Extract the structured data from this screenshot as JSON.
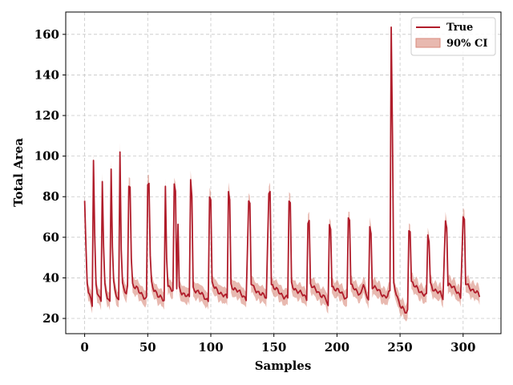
{
  "chart_data": {
    "type": "line",
    "title": "",
    "xlabel": "Samples",
    "ylabel": "Total Area",
    "xlim": [
      -15,
      330
    ],
    "ylim": [
      12.5,
      171
    ],
    "xticks": [
      0,
      50,
      100,
      150,
      200,
      250,
      300
    ],
    "yticks": [
      20,
      40,
      60,
      80,
      100,
      120,
      140,
      160
    ],
    "grid": true,
    "legend_position": "top-right",
    "colors": {
      "line": "#b01c2a",
      "band": "#d98a7c",
      "grid": "#c8c8c8"
    },
    "x_range": [
      0,
      313
    ],
    "series": [
      {
        "name": "True",
        "style": "line",
        "points": [
          [
            0,
            78
          ],
          [
            1,
            55
          ],
          [
            2,
            37
          ],
          [
            3,
            33
          ],
          [
            4,
            31
          ],
          [
            5,
            29
          ],
          [
            6,
            27
          ],
          [
            7,
            99
          ],
          [
            8,
            60
          ],
          [
            9,
            37
          ],
          [
            10,
            33
          ],
          [
            11,
            31
          ],
          [
            12,
            29
          ],
          [
            13,
            28
          ],
          [
            14,
            88
          ],
          [
            15,
            55
          ],
          [
            16,
            37
          ],
          [
            17,
            34
          ],
          [
            18,
            31
          ],
          [
            19,
            29
          ],
          [
            20,
            28
          ],
          [
            21,
            94
          ],
          [
            22,
            55
          ],
          [
            23,
            37
          ],
          [
            24,
            34
          ],
          [
            25,
            32
          ],
          [
            26,
            30
          ],
          [
            27,
            29
          ],
          [
            28,
            103
          ],
          [
            29,
            55
          ],
          [
            30,
            37
          ],
          [
            31,
            34
          ],
          [
            32,
            33
          ],
          [
            33,
            32
          ],
          [
            34,
            35
          ],
          [
            35,
            85
          ],
          [
            36,
            86
          ],
          [
            37,
            50
          ],
          [
            38,
            37
          ],
          [
            39,
            36
          ],
          [
            41,
            35
          ],
          [
            43,
            33
          ],
          [
            45,
            32
          ],
          [
            47,
            31
          ],
          [
            49,
            30
          ],
          [
            50,
            86
          ],
          [
            51,
            87
          ],
          [
            52,
            50
          ],
          [
            53,
            37
          ],
          [
            55,
            34
          ],
          [
            57,
            33
          ],
          [
            59,
            31
          ],
          [
            61,
            30
          ],
          [
            63,
            28
          ],
          [
            64,
            84
          ],
          [
            65,
            50
          ],
          [
            66,
            37
          ],
          [
            68,
            35
          ],
          [
            70,
            34
          ],
          [
            71,
            85
          ],
          [
            72,
            82
          ],
          [
            73,
            35
          ],
          [
            74,
            66
          ],
          [
            75,
            35
          ],
          [
            77,
            33
          ],
          [
            79,
            32
          ],
          [
            81,
            31
          ],
          [
            83,
            30
          ],
          [
            84,
            89
          ],
          [
            85,
            80
          ],
          [
            86,
            35
          ],
          [
            88,
            34
          ],
          [
            90,
            33
          ],
          [
            92,
            32
          ],
          [
            94,
            31
          ],
          [
            96,
            30
          ],
          [
            98,
            29
          ],
          [
            99,
            81
          ],
          [
            100,
            78
          ],
          [
            101,
            37
          ],
          [
            103,
            35
          ],
          [
            105,
            34
          ],
          [
            107,
            33
          ],
          [
            109,
            32
          ],
          [
            111,
            31
          ],
          [
            113,
            30
          ],
          [
            114,
            83
          ],
          [
            115,
            78
          ],
          [
            116,
            37
          ],
          [
            118,
            35
          ],
          [
            120,
            34
          ],
          [
            122,
            33
          ],
          [
            124,
            32
          ],
          [
            126,
            31
          ],
          [
            128,
            30
          ],
          [
            130,
            77
          ],
          [
            131,
            76
          ],
          [
            132,
            37
          ],
          [
            134,
            35
          ],
          [
            136,
            34
          ],
          [
            138,
            33
          ],
          [
            140,
            32
          ],
          [
            142,
            31
          ],
          [
            144,
            30
          ],
          [
            146,
            82
          ],
          [
            147,
            84
          ],
          [
            148,
            37
          ],
          [
            150,
            35
          ],
          [
            152,
            34
          ],
          [
            154,
            33
          ],
          [
            156,
            32
          ],
          [
            158,
            31
          ],
          [
            161,
            30
          ],
          [
            162,
            78
          ],
          [
            163,
            76
          ],
          [
            164,
            37
          ],
          [
            166,
            35
          ],
          [
            168,
            34
          ],
          [
            170,
            33
          ],
          [
            172,
            32
          ],
          [
            174,
            31
          ],
          [
            176,
            30
          ],
          [
            177,
            68
          ],
          [
            178,
            68
          ],
          [
            179,
            37
          ],
          [
            181,
            35
          ],
          [
            183,
            34
          ],
          [
            185,
            33
          ],
          [
            187,
            32
          ],
          [
            189,
            31
          ],
          [
            191,
            30
          ],
          [
            193,
            25
          ],
          [
            194,
            66
          ],
          [
            195,
            65
          ],
          [
            196,
            36
          ],
          [
            198,
            35
          ],
          [
            200,
            34
          ],
          [
            202,
            33
          ],
          [
            204,
            32
          ],
          [
            206,
            31
          ],
          [
            208,
            30
          ],
          [
            209,
            70
          ],
          [
            210,
            69
          ],
          [
            211,
            36
          ],
          [
            213,
            35
          ],
          [
            215,
            34
          ],
          [
            217,
            33
          ],
          [
            219,
            32
          ],
          [
            221,
            37
          ],
          [
            223,
            31
          ],
          [
            225,
            30
          ],
          [
            226,
            65
          ],
          [
            227,
            62
          ],
          [
            228,
            36
          ],
          [
            230,
            35
          ],
          [
            232,
            34
          ],
          [
            234,
            33
          ],
          [
            236,
            32
          ],
          [
            238,
            31
          ],
          [
            240,
            31
          ],
          [
            242,
            33
          ],
          [
            243,
            164
          ],
          [
            244,
            110
          ],
          [
            245,
            37
          ],
          [
            246,
            35
          ],
          [
            247,
            33
          ],
          [
            249,
            28
          ],
          [
            251,
            25
          ],
          [
            253,
            24
          ],
          [
            255,
            23
          ],
          [
            256,
            24
          ],
          [
            257,
            64
          ],
          [
            258,
            64
          ],
          [
            259,
            38
          ],
          [
            261,
            36
          ],
          [
            263,
            35
          ],
          [
            265,
            34
          ],
          [
            267,
            33
          ],
          [
            269,
            32
          ],
          [
            271,
            31
          ],
          [
            272,
            61
          ],
          [
            273,
            58
          ],
          [
            274,
            37
          ],
          [
            276,
            35
          ],
          [
            278,
            34
          ],
          [
            280,
            33
          ],
          [
            282,
            32
          ],
          [
            284,
            30
          ],
          [
            286,
            68
          ],
          [
            287,
            66
          ],
          [
            288,
            37
          ],
          [
            290,
            36
          ],
          [
            292,
            35
          ],
          [
            294,
            34
          ],
          [
            296,
            33
          ],
          [
            298,
            31
          ],
          [
            300,
            69
          ],
          [
            301,
            68
          ],
          [
            302,
            37
          ],
          [
            304,
            36
          ],
          [
            306,
            35
          ],
          [
            308,
            34
          ],
          [
            310,
            33
          ],
          [
            313,
            31
          ]
        ]
      },
      {
        "name": "90% CI",
        "style": "band",
        "half_width": 3
      }
    ]
  }
}
